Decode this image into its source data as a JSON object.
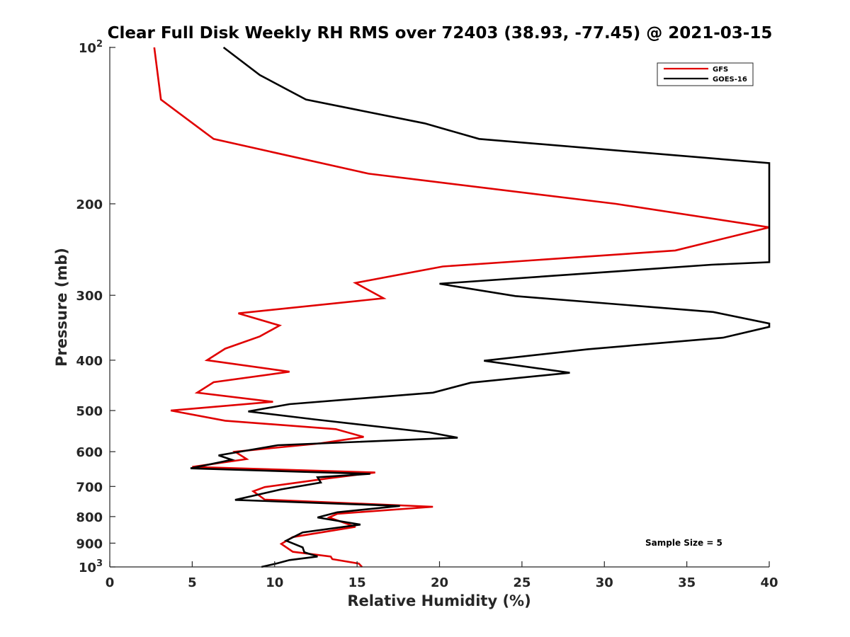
{
  "chart_data": {
    "type": "line",
    "title": "Clear Full Disk Weekly RH RMS over 72403 (38.93, -77.45) @ 2021-03-15",
    "xlabel": "Relative Humidity (%)",
    "ylabel": "Pressure (mb)",
    "xlim": [
      0,
      40
    ],
    "ylim": [
      100,
      1000
    ],
    "y_scale": "log",
    "y_reversed": true,
    "grid": false,
    "legend_position": "top-right",
    "x_ticks": [
      "0",
      "5",
      "10",
      "15",
      "20",
      "25",
      "30",
      "35",
      "40"
    ],
    "y_ticks": [
      {
        "value": 100,
        "base": "10",
        "exp": "2"
      },
      {
        "value": 200,
        "label": "200"
      },
      {
        "value": 300,
        "label": "300"
      },
      {
        "value": 400,
        "label": "400"
      },
      {
        "value": 500,
        "label": "500"
      },
      {
        "value": 600,
        "label": "600"
      },
      {
        "value": 700,
        "label": "700"
      },
      {
        "value": 800,
        "label": "800"
      },
      {
        "value": 900,
        "label": "900"
      },
      {
        "value": 1000,
        "base": "10",
        "exp": "3"
      }
    ],
    "annotation": "Sample Size = 5",
    "series": [
      {
        "name": "GFS",
        "color": "#e00000",
        "points": [
          [
            2.7,
            100
          ],
          [
            3.1,
            126
          ],
          [
            6.3,
            150
          ],
          [
            15.7,
            175
          ],
          [
            30.7,
            200
          ],
          [
            40.0,
            222
          ],
          [
            34.3,
            246
          ],
          [
            20.2,
            264
          ],
          [
            14.9,
            284
          ],
          [
            16.6,
            304
          ],
          [
            7.8,
            325
          ],
          [
            10.3,
            343
          ],
          [
            9.1,
            360
          ],
          [
            7.0,
            380
          ],
          [
            5.9,
            400
          ],
          [
            10.9,
            421
          ],
          [
            6.3,
            441
          ],
          [
            5.3,
            462
          ],
          [
            9.9,
            481
          ],
          [
            3.7,
            500
          ],
          [
            7.0,
            523
          ],
          [
            13.7,
            543
          ],
          [
            15.4,
            562
          ],
          [
            12.8,
            578
          ],
          [
            7.6,
            600
          ],
          [
            8.3,
            620
          ],
          [
            5.0,
            642
          ],
          [
            16.1,
            658
          ],
          [
            13.3,
            675
          ],
          [
            9.4,
            702
          ],
          [
            8.7,
            715
          ],
          [
            9.4,
            742
          ],
          [
            19.6,
            766
          ],
          [
            13.8,
            790
          ],
          [
            13.3,
            803
          ],
          [
            14.9,
            837
          ],
          [
            11.1,
            876
          ],
          [
            10.4,
            903
          ],
          [
            11.1,
            935
          ],
          [
            13.4,
            955
          ],
          [
            13.5,
            966
          ],
          [
            15.1,
            985
          ],
          [
            15.3,
            1000
          ]
        ]
      },
      {
        "name": "GOES-16",
        "color": "#000000",
        "points": [
          [
            6.9,
            100
          ],
          [
            9.1,
            113
          ],
          [
            11.9,
            126
          ],
          [
            19.1,
            140
          ],
          [
            22.4,
            150
          ],
          [
            40.0,
            167
          ],
          [
            40.0,
            259
          ],
          [
            36.5,
            262
          ],
          [
            20.0,
            285
          ],
          [
            24.6,
            301
          ],
          [
            36.6,
            323
          ],
          [
            40.0,
            340
          ],
          [
            40.0,
            345
          ],
          [
            37.2,
            362
          ],
          [
            29.0,
            381
          ],
          [
            22.7,
            401
          ],
          [
            27.9,
            423
          ],
          [
            21.9,
            442
          ],
          [
            19.6,
            462
          ],
          [
            10.9,
            486
          ],
          [
            8.4,
            502
          ],
          [
            12.4,
            520
          ],
          [
            19.4,
            551
          ],
          [
            21.1,
            564
          ],
          [
            10.2,
            583
          ],
          [
            6.6,
            610
          ],
          [
            7.4,
            622
          ],
          [
            4.9,
            646
          ],
          [
            15.8,
            662
          ],
          [
            12.6,
            672
          ],
          [
            12.8,
            688
          ],
          [
            10.4,
            709
          ],
          [
            7.6,
            743
          ],
          [
            17.6,
            763
          ],
          [
            13.8,
            785
          ],
          [
            12.6,
            803
          ],
          [
            15.2,
            829
          ],
          [
            11.7,
            858
          ],
          [
            10.7,
            890
          ],
          [
            11.7,
            917
          ],
          [
            11.8,
            937
          ],
          [
            12.6,
            955
          ],
          [
            10.9,
            970
          ],
          [
            10.1,
            985
          ],
          [
            9.2,
            1000
          ]
        ]
      }
    ]
  }
}
